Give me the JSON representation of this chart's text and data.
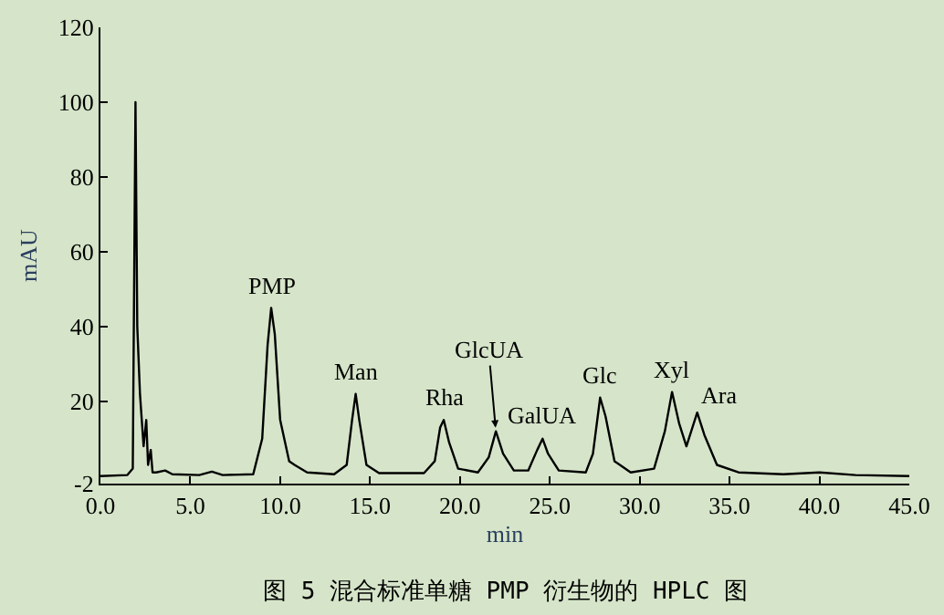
{
  "chart_data": {
    "type": "line",
    "xlabel": "min",
    "ylabel": "mAU",
    "xlim": [
      0,
      45
    ],
    "ylim": [
      -2,
      120
    ],
    "xticks": [
      {
        "value": 0,
        "label": "0.0"
      },
      {
        "value": 5,
        "label": "5.0"
      },
      {
        "value": 10,
        "label": "10.0"
      },
      {
        "value": 15,
        "label": "15.0"
      },
      {
        "value": 20,
        "label": "20.0"
      },
      {
        "value": 25,
        "label": "25.0"
      },
      {
        "value": 30,
        "label": "30.0"
      },
      {
        "value": 35,
        "label": "35.0"
      },
      {
        "value": 40,
        "label": "40.0"
      },
      {
        "value": 45,
        "label": "45.0"
      }
    ],
    "yticks": [
      -2,
      20,
      40,
      60,
      80,
      100,
      120
    ],
    "marker": "none",
    "line_style": "solid",
    "series": [
      {
        "color": "#000000",
        "x": [
          0,
          1.5,
          1.8,
          1.95,
          2.05,
          2.2,
          2.4,
          2.55,
          2.65,
          2.8,
          2.9,
          3.1,
          3.6,
          4.0,
          5.5,
          6.2,
          6.8,
          8.5,
          9.0,
          9.3,
          9.5,
          9.7,
          10.0,
          10.5,
          10.8,
          11.5,
          13.0,
          13.7,
          14.0,
          14.2,
          14.4,
          14.8,
          15.5,
          18.0,
          18.6,
          18.9,
          19.1,
          19.4,
          19.9,
          21.0,
          21.6,
          22.0,
          22.4,
          23.0,
          23.8,
          24.3,
          24.6,
          24.9,
          25.5,
          27.0,
          27.4,
          27.8,
          28.1,
          28.6,
          29.5,
          30.8,
          31.4,
          31.8,
          32.2,
          32.6,
          33.2,
          33.6,
          34.3,
          35.5,
          38,
          40,
          42,
          45
        ],
        "values": [
          0,
          0.3,
          2,
          100,
          40,
          22,
          8,
          15,
          3,
          7,
          1,
          1,
          1.5,
          0.5,
          0.3,
          1.2,
          0.3,
          0.5,
          10,
          35,
          45,
          38,
          15,
          4,
          3,
          1,
          0.5,
          3,
          15,
          22,
          15,
          3,
          0.8,
          0.8,
          4,
          13,
          15,
          9,
          2,
          1,
          5,
          12,
          6,
          1.5,
          1.5,
          7,
          10,
          6,
          1.5,
          1,
          6,
          21,
          16,
          4,
          1,
          2,
          12,
          22.5,
          14,
          8,
          17,
          11,
          3,
          1,
          0.5,
          1,
          0.3,
          0
        ]
      }
    ],
    "annotations": [
      {
        "text": "PMP",
        "x": 9.5,
        "y": 45
      },
      {
        "text": "Man",
        "x": 14.2,
        "y": 22
      },
      {
        "text": "Rha",
        "x": 19.1,
        "y": 15
      },
      {
        "text": "GlcUA",
        "x": 22.0,
        "y": 12
      },
      {
        "text": "GalUA",
        "x": 24.6,
        "y": 10
      },
      {
        "text": "Glc",
        "x": 27.8,
        "y": 21
      },
      {
        "text": "Xyl",
        "x": 31.8,
        "y": 22.5
      },
      {
        "text": "Ara",
        "x": 33.2,
        "y": 17
      },
      "图 5 混合标准单糖 PMP 衍生物的 HPLC 图"
    ]
  }
}
